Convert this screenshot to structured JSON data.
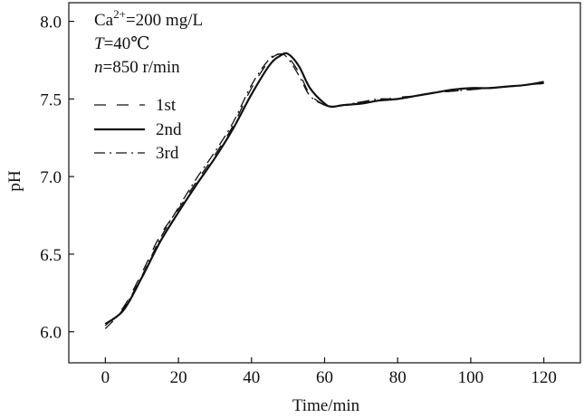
{
  "chart_data": {
    "type": "line",
    "xlabel": "Time/min",
    "ylabel": "pH",
    "xlim": [
      -10,
      130
    ],
    "ylim": [
      5.8,
      8.12
    ],
    "xticks": [
      0,
      20,
      40,
      60,
      80,
      100,
      120
    ],
    "yticks": [
      6.0,
      6.5,
      7.0,
      7.5,
      8.0
    ],
    "xtick_labels": [
      "0",
      "20",
      "40",
      "60",
      "80",
      "100",
      "120"
    ],
    "ytick_labels": [
      "6.0",
      "6.5",
      "7.0",
      "7.5",
      "8.0"
    ],
    "grid": false,
    "legend_position": "upper-left",
    "annotations": [
      {
        "base": "Ca",
        "sup": "2+",
        "rest": "=200 mg/L"
      },
      {
        "var": "T",
        "rest": "=40℃"
      },
      {
        "var": "n",
        "rest": "=850 r/min"
      }
    ],
    "series": [
      {
        "name": "1st",
        "style": "dashed",
        "color": "#111111",
        "x": [
          0,
          5,
          10,
          15,
          20,
          25,
          30,
          35,
          40,
          45,
          48,
          50,
          53,
          56,
          60,
          62,
          65,
          70,
          75,
          80,
          85,
          90,
          95,
          100,
          105,
          110,
          115,
          120
        ],
        "y": [
          6.04,
          6.16,
          6.38,
          6.62,
          6.79,
          6.97,
          7.14,
          7.33,
          7.57,
          7.75,
          7.79,
          7.77,
          7.67,
          7.53,
          7.46,
          7.45,
          7.46,
          7.48,
          7.49,
          7.51,
          7.52,
          7.54,
          7.55,
          7.56,
          7.57,
          7.58,
          7.59,
          7.6
        ]
      },
      {
        "name": "2nd",
        "style": "solid",
        "color": "#111111",
        "x": [
          0,
          5,
          10,
          15,
          20,
          25,
          30,
          35,
          40,
          45,
          48,
          50,
          53,
          56,
          60,
          62,
          65,
          70,
          75,
          80,
          85,
          90,
          95,
          100,
          105,
          110,
          115,
          120
        ],
        "y": [
          6.05,
          6.14,
          6.35,
          6.58,
          6.77,
          6.95,
          7.12,
          7.31,
          7.53,
          7.72,
          7.78,
          7.79,
          7.71,
          7.57,
          7.47,
          7.45,
          7.46,
          7.47,
          7.49,
          7.5,
          7.52,
          7.54,
          7.56,
          7.57,
          7.57,
          7.58,
          7.59,
          7.61
        ]
      },
      {
        "name": "3rd",
        "style": "dashdot",
        "color": "#111111",
        "x": [
          0,
          5,
          10,
          15,
          20,
          25,
          30,
          35,
          40,
          45,
          48,
          50,
          53,
          56,
          60,
          62,
          65,
          70,
          75,
          80,
          85,
          90,
          95,
          100,
          105,
          110,
          115,
          120
        ],
        "y": [
          6.02,
          6.15,
          6.36,
          6.6,
          6.8,
          6.99,
          7.16,
          7.35,
          7.59,
          7.76,
          7.79,
          7.76,
          7.65,
          7.52,
          7.46,
          7.45,
          7.46,
          7.48,
          7.5,
          7.5,
          7.52,
          7.54,
          7.55,
          7.56,
          7.57,
          7.58,
          7.59,
          7.6
        ]
      }
    ]
  }
}
